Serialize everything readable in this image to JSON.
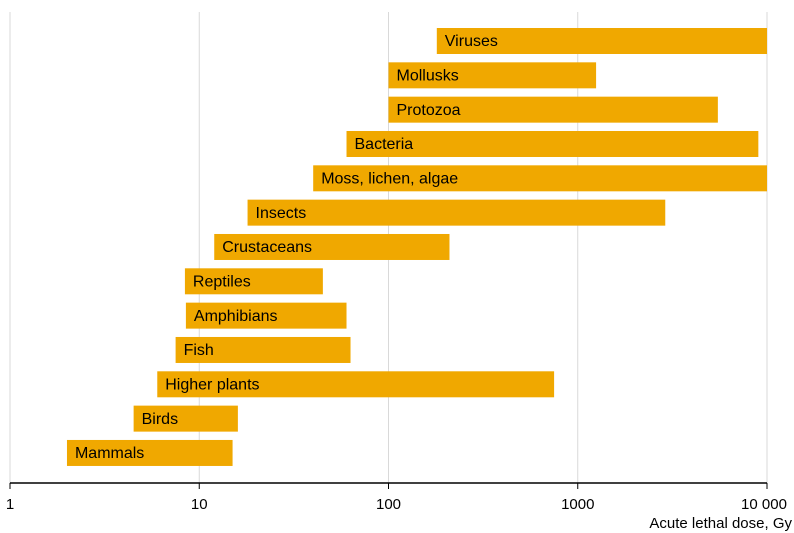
{
  "chart_data": {
    "type": "range-bar",
    "categories": [
      "Viruses",
      "Mollusks",
      "Protozoa",
      "Bacteria",
      "Moss, lichen, algae",
      "Insects",
      "Crustaceans",
      "Reptiles",
      "Amphibians",
      "Fish",
      "Higher plants",
      "Birds",
      "Mammals"
    ],
    "low": [
      180,
      100,
      100,
      60,
      40,
      18,
      12,
      8.4,
      8.5,
      7.5,
      6,
      4.5,
      2
    ],
    "high": [
      10000,
      1250,
      5500,
      9000,
      10000,
      2900,
      210,
      45,
      60,
      63,
      750,
      16,
      15
    ],
    "color": "#f0a800",
    "x_label": "Acute lethal dose, Gy",
    "xlim": [
      1,
      10000
    ],
    "xticks": [
      1,
      10,
      100,
      1000,
      {
        "value": 10000,
        "label": "10 000"
      }
    ],
    "log_x": true,
    "grid": true
  }
}
